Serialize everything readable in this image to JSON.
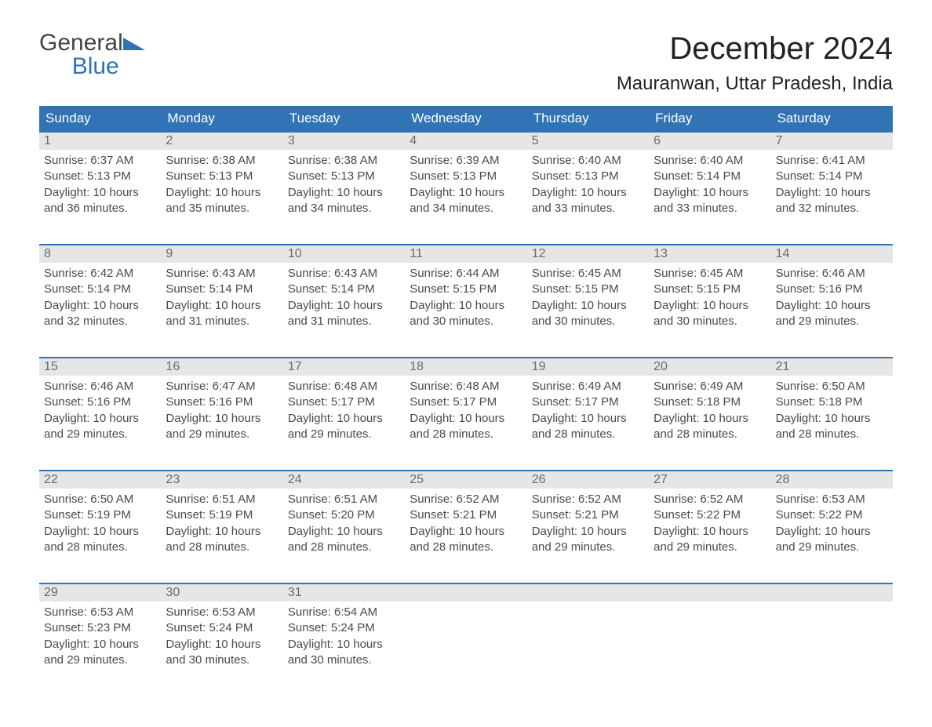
{
  "brand": {
    "part1": "General",
    "part2": "Blue"
  },
  "title": {
    "month": "December 2024",
    "location": "Mauranwan, Uttar Pradesh, India"
  },
  "colors": {
    "header_bg": "#3174b6",
    "header_text": "#ffffff",
    "daynum_bg": "#e6e6e6",
    "daynum_text": "#6a6a6a",
    "body_text": "#4a4a4a",
    "rule": "#3174b6",
    "brand_gray": "#444444",
    "brand_blue": "#2f73b6"
  },
  "fonts": {
    "body_pt": 15,
    "head_pt": 17,
    "month_pt": 40,
    "location_pt": 24
  },
  "daynames": [
    "Sunday",
    "Monday",
    "Tuesday",
    "Wednesday",
    "Thursday",
    "Friday",
    "Saturday"
  ],
  "weeks": [
    [
      {
        "n": "1",
        "sr": "Sunrise: 6:37 AM",
        "ss": "Sunset: 5:13 PM",
        "d1": "Daylight: 10 hours",
        "d2": "and 36 minutes."
      },
      {
        "n": "2",
        "sr": "Sunrise: 6:38 AM",
        "ss": "Sunset: 5:13 PM",
        "d1": "Daylight: 10 hours",
        "d2": "and 35 minutes."
      },
      {
        "n": "3",
        "sr": "Sunrise: 6:38 AM",
        "ss": "Sunset: 5:13 PM",
        "d1": "Daylight: 10 hours",
        "d2": "and 34 minutes."
      },
      {
        "n": "4",
        "sr": "Sunrise: 6:39 AM",
        "ss": "Sunset: 5:13 PM",
        "d1": "Daylight: 10 hours",
        "d2": "and 34 minutes."
      },
      {
        "n": "5",
        "sr": "Sunrise: 6:40 AM",
        "ss": "Sunset: 5:13 PM",
        "d1": "Daylight: 10 hours",
        "d2": "and 33 minutes."
      },
      {
        "n": "6",
        "sr": "Sunrise: 6:40 AM",
        "ss": "Sunset: 5:14 PM",
        "d1": "Daylight: 10 hours",
        "d2": "and 33 minutes."
      },
      {
        "n": "7",
        "sr": "Sunrise: 6:41 AM",
        "ss": "Sunset: 5:14 PM",
        "d1": "Daylight: 10 hours",
        "d2": "and 32 minutes."
      }
    ],
    [
      {
        "n": "8",
        "sr": "Sunrise: 6:42 AM",
        "ss": "Sunset: 5:14 PM",
        "d1": "Daylight: 10 hours",
        "d2": "and 32 minutes."
      },
      {
        "n": "9",
        "sr": "Sunrise: 6:43 AM",
        "ss": "Sunset: 5:14 PM",
        "d1": "Daylight: 10 hours",
        "d2": "and 31 minutes."
      },
      {
        "n": "10",
        "sr": "Sunrise: 6:43 AM",
        "ss": "Sunset: 5:14 PM",
        "d1": "Daylight: 10 hours",
        "d2": "and 31 minutes."
      },
      {
        "n": "11",
        "sr": "Sunrise: 6:44 AM",
        "ss": "Sunset: 5:15 PM",
        "d1": "Daylight: 10 hours",
        "d2": "and 30 minutes."
      },
      {
        "n": "12",
        "sr": "Sunrise: 6:45 AM",
        "ss": "Sunset: 5:15 PM",
        "d1": "Daylight: 10 hours",
        "d2": "and 30 minutes."
      },
      {
        "n": "13",
        "sr": "Sunrise: 6:45 AM",
        "ss": "Sunset: 5:15 PM",
        "d1": "Daylight: 10 hours",
        "d2": "and 30 minutes."
      },
      {
        "n": "14",
        "sr": "Sunrise: 6:46 AM",
        "ss": "Sunset: 5:16 PM",
        "d1": "Daylight: 10 hours",
        "d2": "and 29 minutes."
      }
    ],
    [
      {
        "n": "15",
        "sr": "Sunrise: 6:46 AM",
        "ss": "Sunset: 5:16 PM",
        "d1": "Daylight: 10 hours",
        "d2": "and 29 minutes."
      },
      {
        "n": "16",
        "sr": "Sunrise: 6:47 AM",
        "ss": "Sunset: 5:16 PM",
        "d1": "Daylight: 10 hours",
        "d2": "and 29 minutes."
      },
      {
        "n": "17",
        "sr": "Sunrise: 6:48 AM",
        "ss": "Sunset: 5:17 PM",
        "d1": "Daylight: 10 hours",
        "d2": "and 29 minutes."
      },
      {
        "n": "18",
        "sr": "Sunrise: 6:48 AM",
        "ss": "Sunset: 5:17 PM",
        "d1": "Daylight: 10 hours",
        "d2": "and 28 minutes."
      },
      {
        "n": "19",
        "sr": "Sunrise: 6:49 AM",
        "ss": "Sunset: 5:17 PM",
        "d1": "Daylight: 10 hours",
        "d2": "and 28 minutes."
      },
      {
        "n": "20",
        "sr": "Sunrise: 6:49 AM",
        "ss": "Sunset: 5:18 PM",
        "d1": "Daylight: 10 hours",
        "d2": "and 28 minutes."
      },
      {
        "n": "21",
        "sr": "Sunrise: 6:50 AM",
        "ss": "Sunset: 5:18 PM",
        "d1": "Daylight: 10 hours",
        "d2": "and 28 minutes."
      }
    ],
    [
      {
        "n": "22",
        "sr": "Sunrise: 6:50 AM",
        "ss": "Sunset: 5:19 PM",
        "d1": "Daylight: 10 hours",
        "d2": "and 28 minutes."
      },
      {
        "n": "23",
        "sr": "Sunrise: 6:51 AM",
        "ss": "Sunset: 5:19 PM",
        "d1": "Daylight: 10 hours",
        "d2": "and 28 minutes."
      },
      {
        "n": "24",
        "sr": "Sunrise: 6:51 AM",
        "ss": "Sunset: 5:20 PM",
        "d1": "Daylight: 10 hours",
        "d2": "and 28 minutes."
      },
      {
        "n": "25",
        "sr": "Sunrise: 6:52 AM",
        "ss": "Sunset: 5:21 PM",
        "d1": "Daylight: 10 hours",
        "d2": "and 28 minutes."
      },
      {
        "n": "26",
        "sr": "Sunrise: 6:52 AM",
        "ss": "Sunset: 5:21 PM",
        "d1": "Daylight: 10 hours",
        "d2": "and 29 minutes."
      },
      {
        "n": "27",
        "sr": "Sunrise: 6:52 AM",
        "ss": "Sunset: 5:22 PM",
        "d1": "Daylight: 10 hours",
        "d2": "and 29 minutes."
      },
      {
        "n": "28",
        "sr": "Sunrise: 6:53 AM",
        "ss": "Sunset: 5:22 PM",
        "d1": "Daylight: 10 hours",
        "d2": "and 29 minutes."
      }
    ],
    [
      {
        "n": "29",
        "sr": "Sunrise: 6:53 AM",
        "ss": "Sunset: 5:23 PM",
        "d1": "Daylight: 10 hours",
        "d2": "and 29 minutes."
      },
      {
        "n": "30",
        "sr": "Sunrise: 6:53 AM",
        "ss": "Sunset: 5:24 PM",
        "d1": "Daylight: 10 hours",
        "d2": "and 30 minutes."
      },
      {
        "n": "31",
        "sr": "Sunrise: 6:54 AM",
        "ss": "Sunset: 5:24 PM",
        "d1": "Daylight: 10 hours",
        "d2": "and 30 minutes."
      },
      null,
      null,
      null,
      null
    ]
  ]
}
